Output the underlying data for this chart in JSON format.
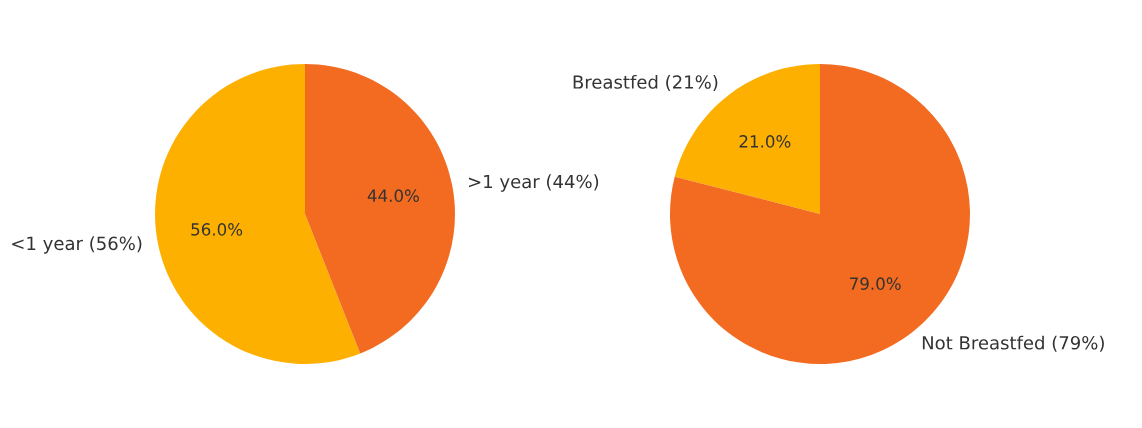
{
  "chart_data": [
    {
      "type": "pie",
      "categories": [
        "<1 year (56%)",
        ">1 year (44%)"
      ],
      "values": [
        56,
        44
      ],
      "colors": [
        "#fdb000",
        "#f26b21"
      ],
      "value_labels": [
        "56.0%",
        "44.0%"
      ]
    },
    {
      "type": "pie",
      "categories": [
        "Breastfed (21%)",
        "Not Breastfed (79%)"
      ],
      "values": [
        21,
        79
      ],
      "colors": [
        "#fdb000",
        "#f26b21"
      ],
      "value_labels": [
        "21.0%",
        "79.0%"
      ]
    }
  ]
}
